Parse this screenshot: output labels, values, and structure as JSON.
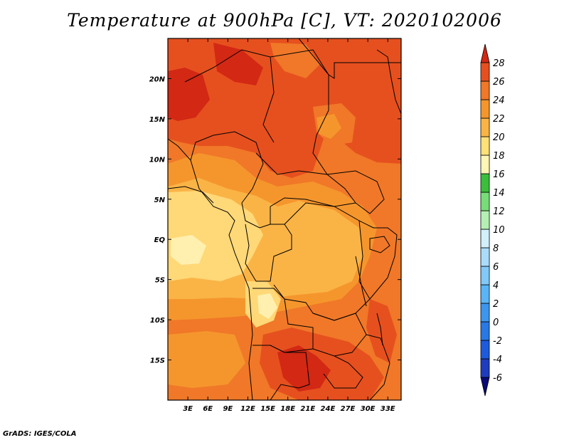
{
  "title": "Temperature at 900hPa [C], VT: 2020102006",
  "credit": "GrADS: IGES/COLA",
  "map": {
    "lon_range": [
      0,
      35
    ],
    "lat_range": [
      -20,
      25
    ],
    "x_ticks": [
      {
        "value": 3,
        "label": "3E"
      },
      {
        "value": 6,
        "label": "6E"
      },
      {
        "value": 9,
        "label": "9E"
      },
      {
        "value": 12,
        "label": "12E"
      },
      {
        "value": 15,
        "label": "15E"
      },
      {
        "value": 18,
        "label": "18E"
      },
      {
        "value": 21,
        "label": "21E"
      },
      {
        "value": 24,
        "label": "24E"
      },
      {
        "value": 27,
        "label": "27E"
      },
      {
        "value": 30,
        "label": "30E"
      },
      {
        "value": 33,
        "label": "33E"
      }
    ],
    "y_ticks": [
      {
        "value": 20,
        "label": "20N"
      },
      {
        "value": 15,
        "label": "15N"
      },
      {
        "value": 10,
        "label": "10N"
      },
      {
        "value": 5,
        "label": "5N"
      },
      {
        "value": 0,
        "label": "EQ"
      },
      {
        "value": -5,
        "label": "5S"
      },
      {
        "value": -10,
        "label": "10S"
      },
      {
        "value": -15,
        "label": "15S"
      }
    ]
  },
  "colorbar": {
    "levels": [
      "-6",
      "-4",
      "-2",
      "0",
      "2",
      "4",
      "6",
      "8",
      "10",
      "12",
      "14",
      "16",
      "18",
      "20",
      "22",
      "24",
      "26",
      "28"
    ],
    "colors": [
      "#0a0a78",
      "#1e3cbe",
      "#1e5adc",
      "#2878e6",
      "#3c96ee",
      "#5ab4f5",
      "#82c8f8",
      "#aadcfa",
      "#d2f0fa",
      "#b4f0b4",
      "#78dc78",
      "#3cbe3c",
      "#fff5b4",
      "#ffe178",
      "#fab446",
      "#f5962d",
      "#f07828",
      "#e6501e",
      "#d22814"
    ]
  },
  "colors": {
    "t_28": "#d22814",
    "t_26": "#e6501e",
    "t_24": "#f07828",
    "t_22": "#f5962d",
    "t_20": "#fab446",
    "t_18": "#ffd878",
    "t_16": "#fff0b0",
    "border": "#000000"
  }
}
